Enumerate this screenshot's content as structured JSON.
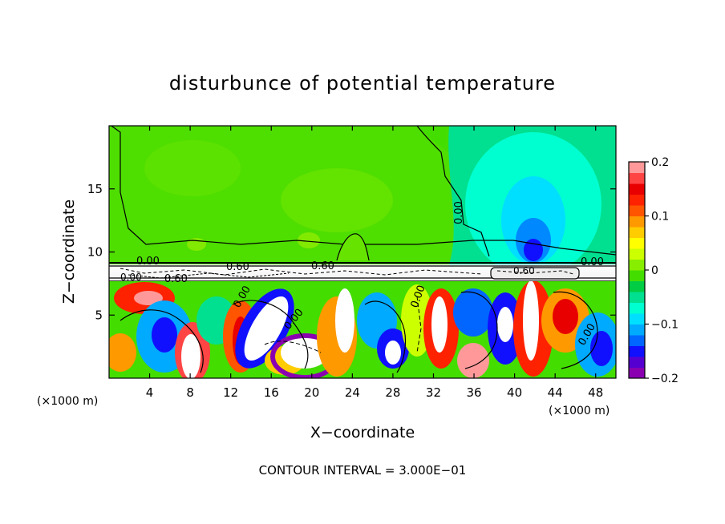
{
  "chart_data": {
    "type": "heatmap",
    "title": "disturbunce of potential temperature",
    "xlabel": "X−coordinate",
    "ylabel": "Z−coordinate",
    "x_unit_label_left": "(×1000 m)",
    "x_unit_label_right": "(×1000 m)",
    "xlim": [
      0,
      50
    ],
    "ylim": [
      0,
      20
    ],
    "x_ticks": [
      4,
      8,
      12,
      16,
      20,
      24,
      28,
      32,
      36,
      40,
      44,
      48
    ],
    "y_ticks": [
      5,
      10,
      15
    ],
    "footer": "CONTOUR INTERVAL = 3.000E−01",
    "colorbar": {
      "range": [
        -0.2,
        0.2
      ],
      "tick_values": [
        0.2,
        0.1,
        0,
        -0.1,
        -0.2
      ],
      "tick_labels": [
        "0.2",
        "0.1",
        "0",
        "−0.1",
        "−0.2"
      ],
      "colors": [
        "#8a00b0",
        "#5500d0",
        "#1010ff",
        "#0066ff",
        "#00aaff",
        "#00dfff",
        "#00ffd0",
        "#00e090",
        "#00cc44",
        "#44dd00",
        "#88ee00",
        "#ccff00",
        "#ffff00",
        "#ffcc00",
        "#ff9900",
        "#ff5500",
        "#ff2200",
        "#e80000",
        "#ff4444",
        "#ff9999"
      ]
    },
    "contour_labels": [
      "0.00",
      "0.00",
      "0.00",
      "0.00",
      "0.00",
      "0.00",
      "0.00",
      "0.00",
      "0.60",
      "0.60",
      "0.60",
      "0.60"
    ]
  }
}
